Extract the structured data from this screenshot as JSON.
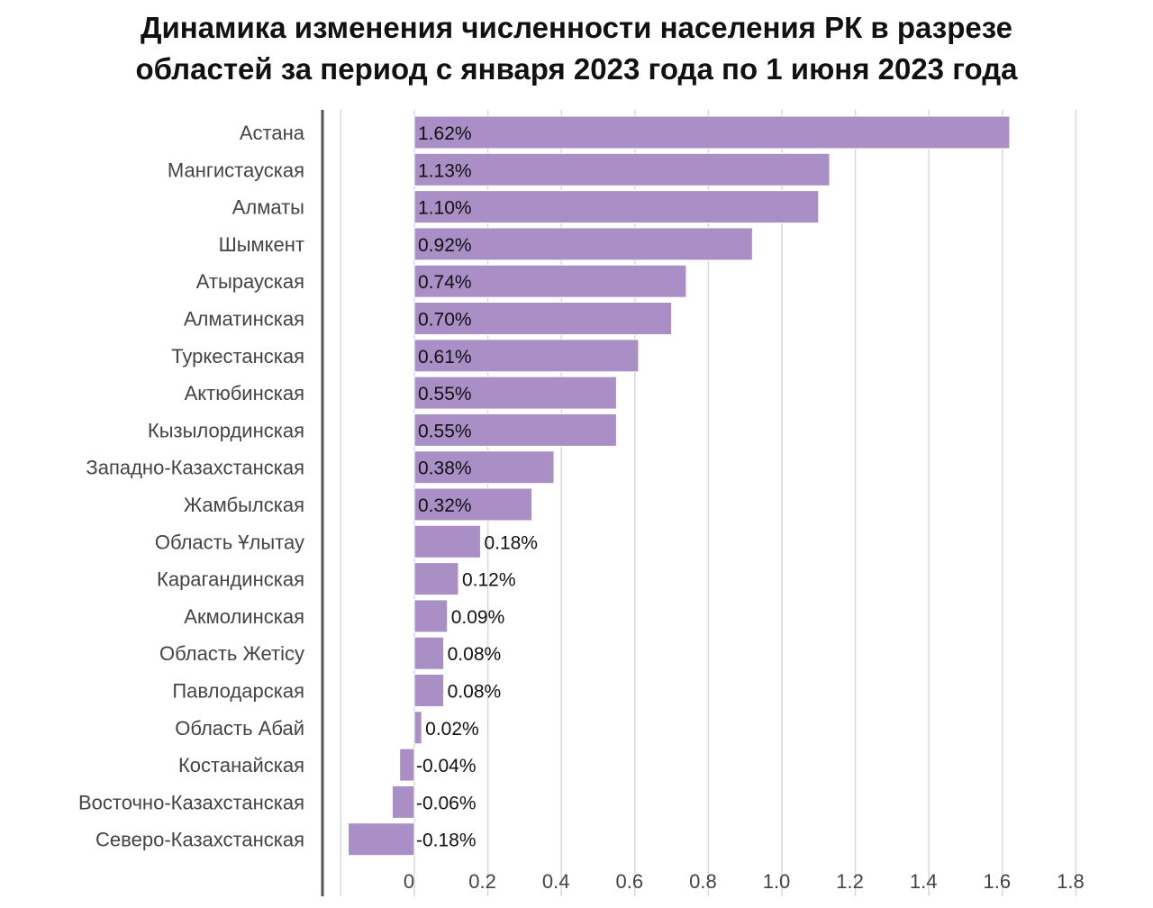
{
  "title_line1": "Динамика изменения численности населения РК в разрезе",
  "title_line2": "областей за период с января 2023 года по 1 июня 2023 года",
  "chart_data": {
    "type": "bar",
    "orientation": "horizontal",
    "title": "Динамика изменения численности населения РК в разрезе областей за период с января 2023 года по 1 июня 2023 года",
    "xlabel": "",
    "ylabel": "",
    "xlim": [
      -0.18,
      1.8
    ],
    "xticks": [
      "0",
      "0.2",
      "0.4",
      "0.6",
      "0.8",
      "1.0",
      "1.2",
      "1.4",
      "1.6",
      "1.8"
    ],
    "grid": "vertical",
    "bar_color": "#a98fc5",
    "categories": [
      "Астана",
      "Мангистауская",
      "Алматы",
      "Шымкент",
      "Атырауская",
      "Алматинская",
      "Туркестанская",
      "Актюбинская",
      "Кызылординская",
      "Западно-Казахстанская",
      "Жамбылская",
      "Область Ұлытау",
      "Карагандинская",
      "Акмолинская",
      "Область Жетісу",
      "Павлодарская",
      "Область Абай",
      "Костанайская",
      "Восточно-Казахстанская",
      "Северо-Казахстанская"
    ],
    "values": [
      1.62,
      1.13,
      1.1,
      0.92,
      0.74,
      0.7,
      0.61,
      0.55,
      0.55,
      0.38,
      0.32,
      0.18,
      0.12,
      0.09,
      0.08,
      0.08,
      0.02,
      -0.04,
      -0.06,
      -0.18
    ],
    "value_labels": [
      "1.62%",
      "1.13%",
      "1.10%",
      "0.92%",
      "0.74%",
      "0.70%",
      "0.61%",
      "0.55%",
      "0.55%",
      "0.38%",
      "0.32%",
      "0.18%",
      "0.12%",
      "0.09%",
      "0.08%",
      "0.08%",
      "0.02%",
      "-0.04%",
      "-0.06%",
      "-0.18%"
    ]
  }
}
